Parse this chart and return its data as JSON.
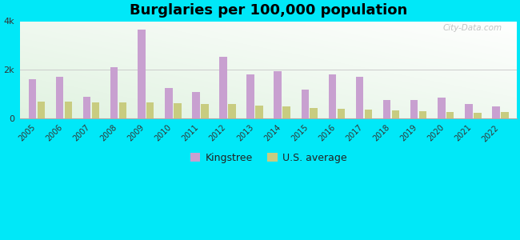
{
  "title": "Burglaries per 100,000 population",
  "years": [
    2005,
    2006,
    2007,
    2008,
    2009,
    2010,
    2011,
    2012,
    2013,
    2014,
    2015,
    2016,
    2017,
    2018,
    2019,
    2020,
    2021,
    2022
  ],
  "kingstree": [
    1600,
    1700,
    900,
    2100,
    3650,
    1250,
    1100,
    2550,
    1800,
    1950,
    1200,
    1800,
    1700,
    750,
    750,
    850,
    600,
    480
  ],
  "us_average": [
    680,
    680,
    660,
    660,
    660,
    620,
    600,
    580,
    540,
    510,
    440,
    400,
    360,
    320,
    290,
    260,
    230,
    270
  ],
  "kingstree_color": "#c8a0d0",
  "us_color": "#c8cc80",
  "bg_outer": "#00e8f8",
  "bg_plot_tl": "#d8efd0",
  "bg_plot_tr": "#eef8f0",
  "bg_plot_bottom": "#f5fff5",
  "ylim": [
    0,
    4000
  ],
  "ytick_labels": [
    "0",
    "2k",
    "4k"
  ],
  "ytick_values": [
    0,
    2000,
    4000
  ],
  "legend_kingstree": "Kingstree",
  "legend_us": "U.S. average",
  "bar_width": 0.28,
  "title_fontsize": 13,
  "watermark": "City-Data.com"
}
